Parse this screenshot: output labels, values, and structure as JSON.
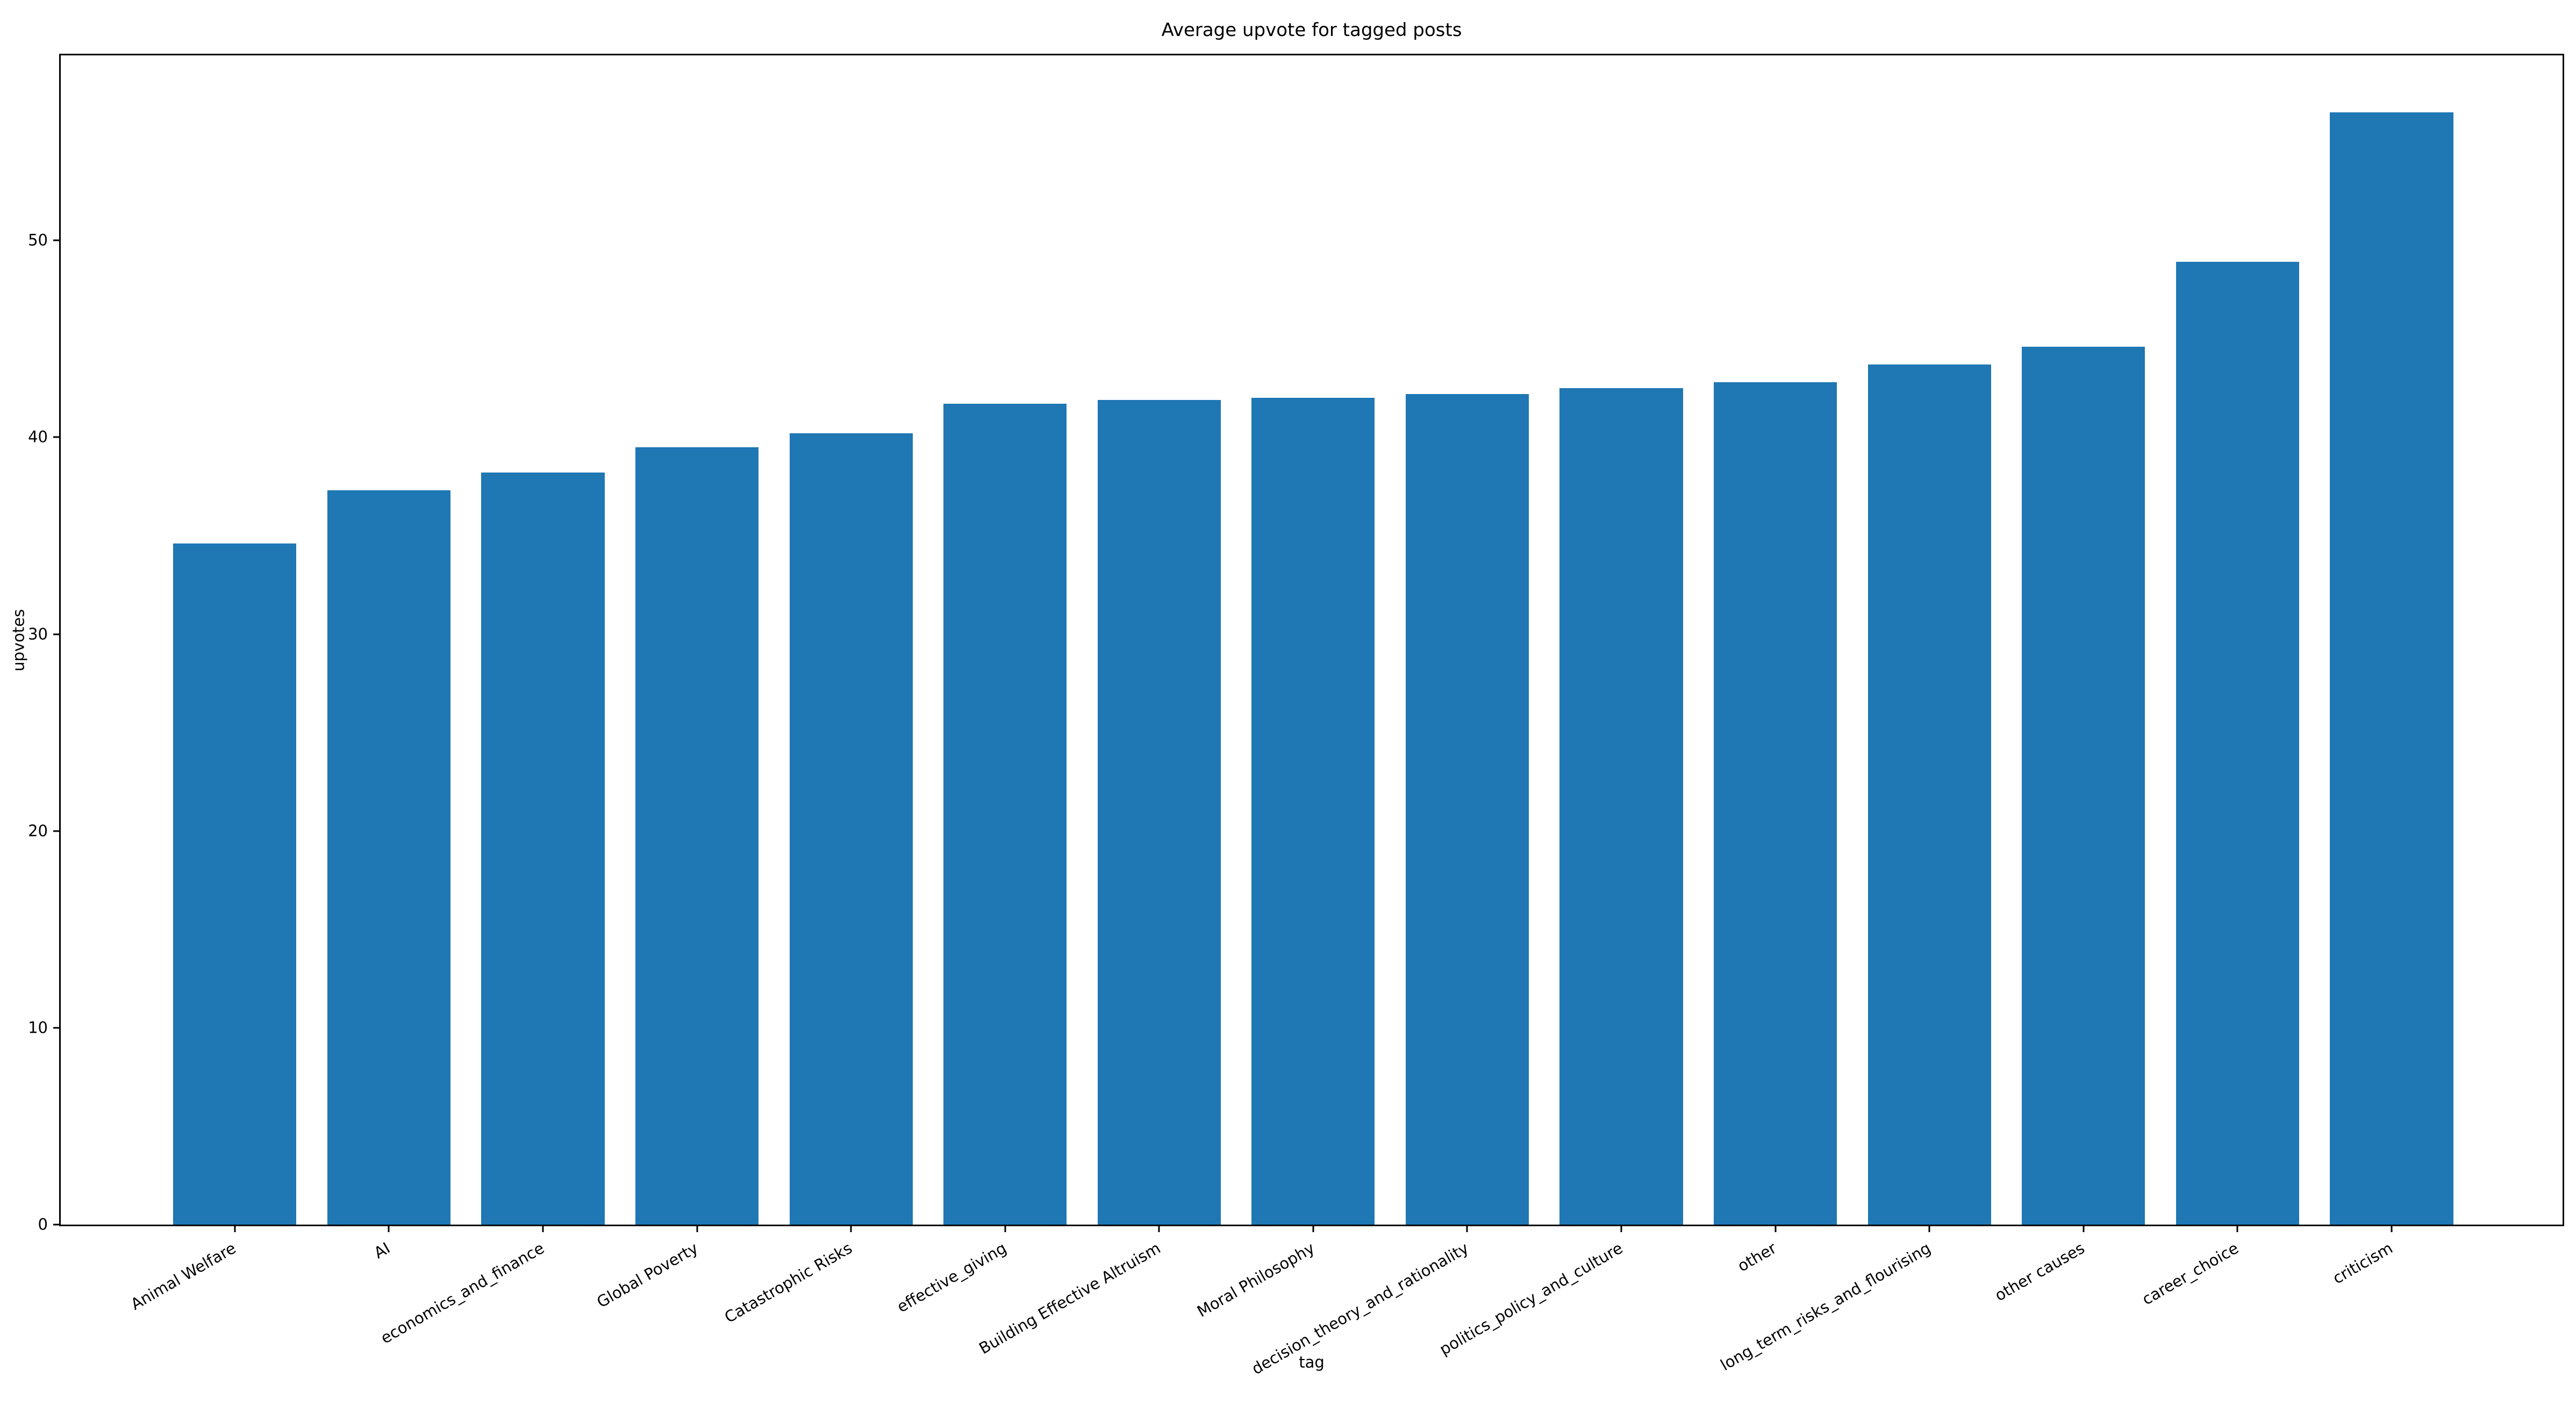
{
  "figure": {
    "background": "#ffffff"
  },
  "chart_data": {
    "type": "bar",
    "title": "Average upvote for tagged posts",
    "xlabel": "tag",
    "ylabel": "upvotes",
    "categories": [
      "Animal Welfare",
      "AI",
      "economics_and_finance",
      "Global Poverty",
      "Catastrophic Risks",
      "effective_giving",
      "Building Effective Altruism",
      "Moral Philosophy",
      "decision_theory_and_rationality",
      "politics_policy_and_culture",
      "other",
      "long_term_risks_and_flourising",
      "other causes",
      "career_choice",
      "criticism"
    ],
    "values": [
      34.6,
      37.3,
      38.2,
      39.5,
      40.2,
      41.7,
      41.9,
      42.0,
      42.2,
      42.5,
      42.8,
      43.7,
      44.6,
      48.9,
      56.5
    ],
    "yticks": [
      0,
      10,
      20,
      30,
      40,
      50
    ],
    "ylim": [
      0,
      59.4
    ],
    "xlim_units": [
      -1.13,
      15.11
    ],
    "bar_width_units": 0.8,
    "bar_color": "#1f77b4",
    "axis_color": "#000000",
    "text_color": "#000000",
    "grid": false,
    "legend": "none",
    "tick_label_rotation_deg": 30
  }
}
